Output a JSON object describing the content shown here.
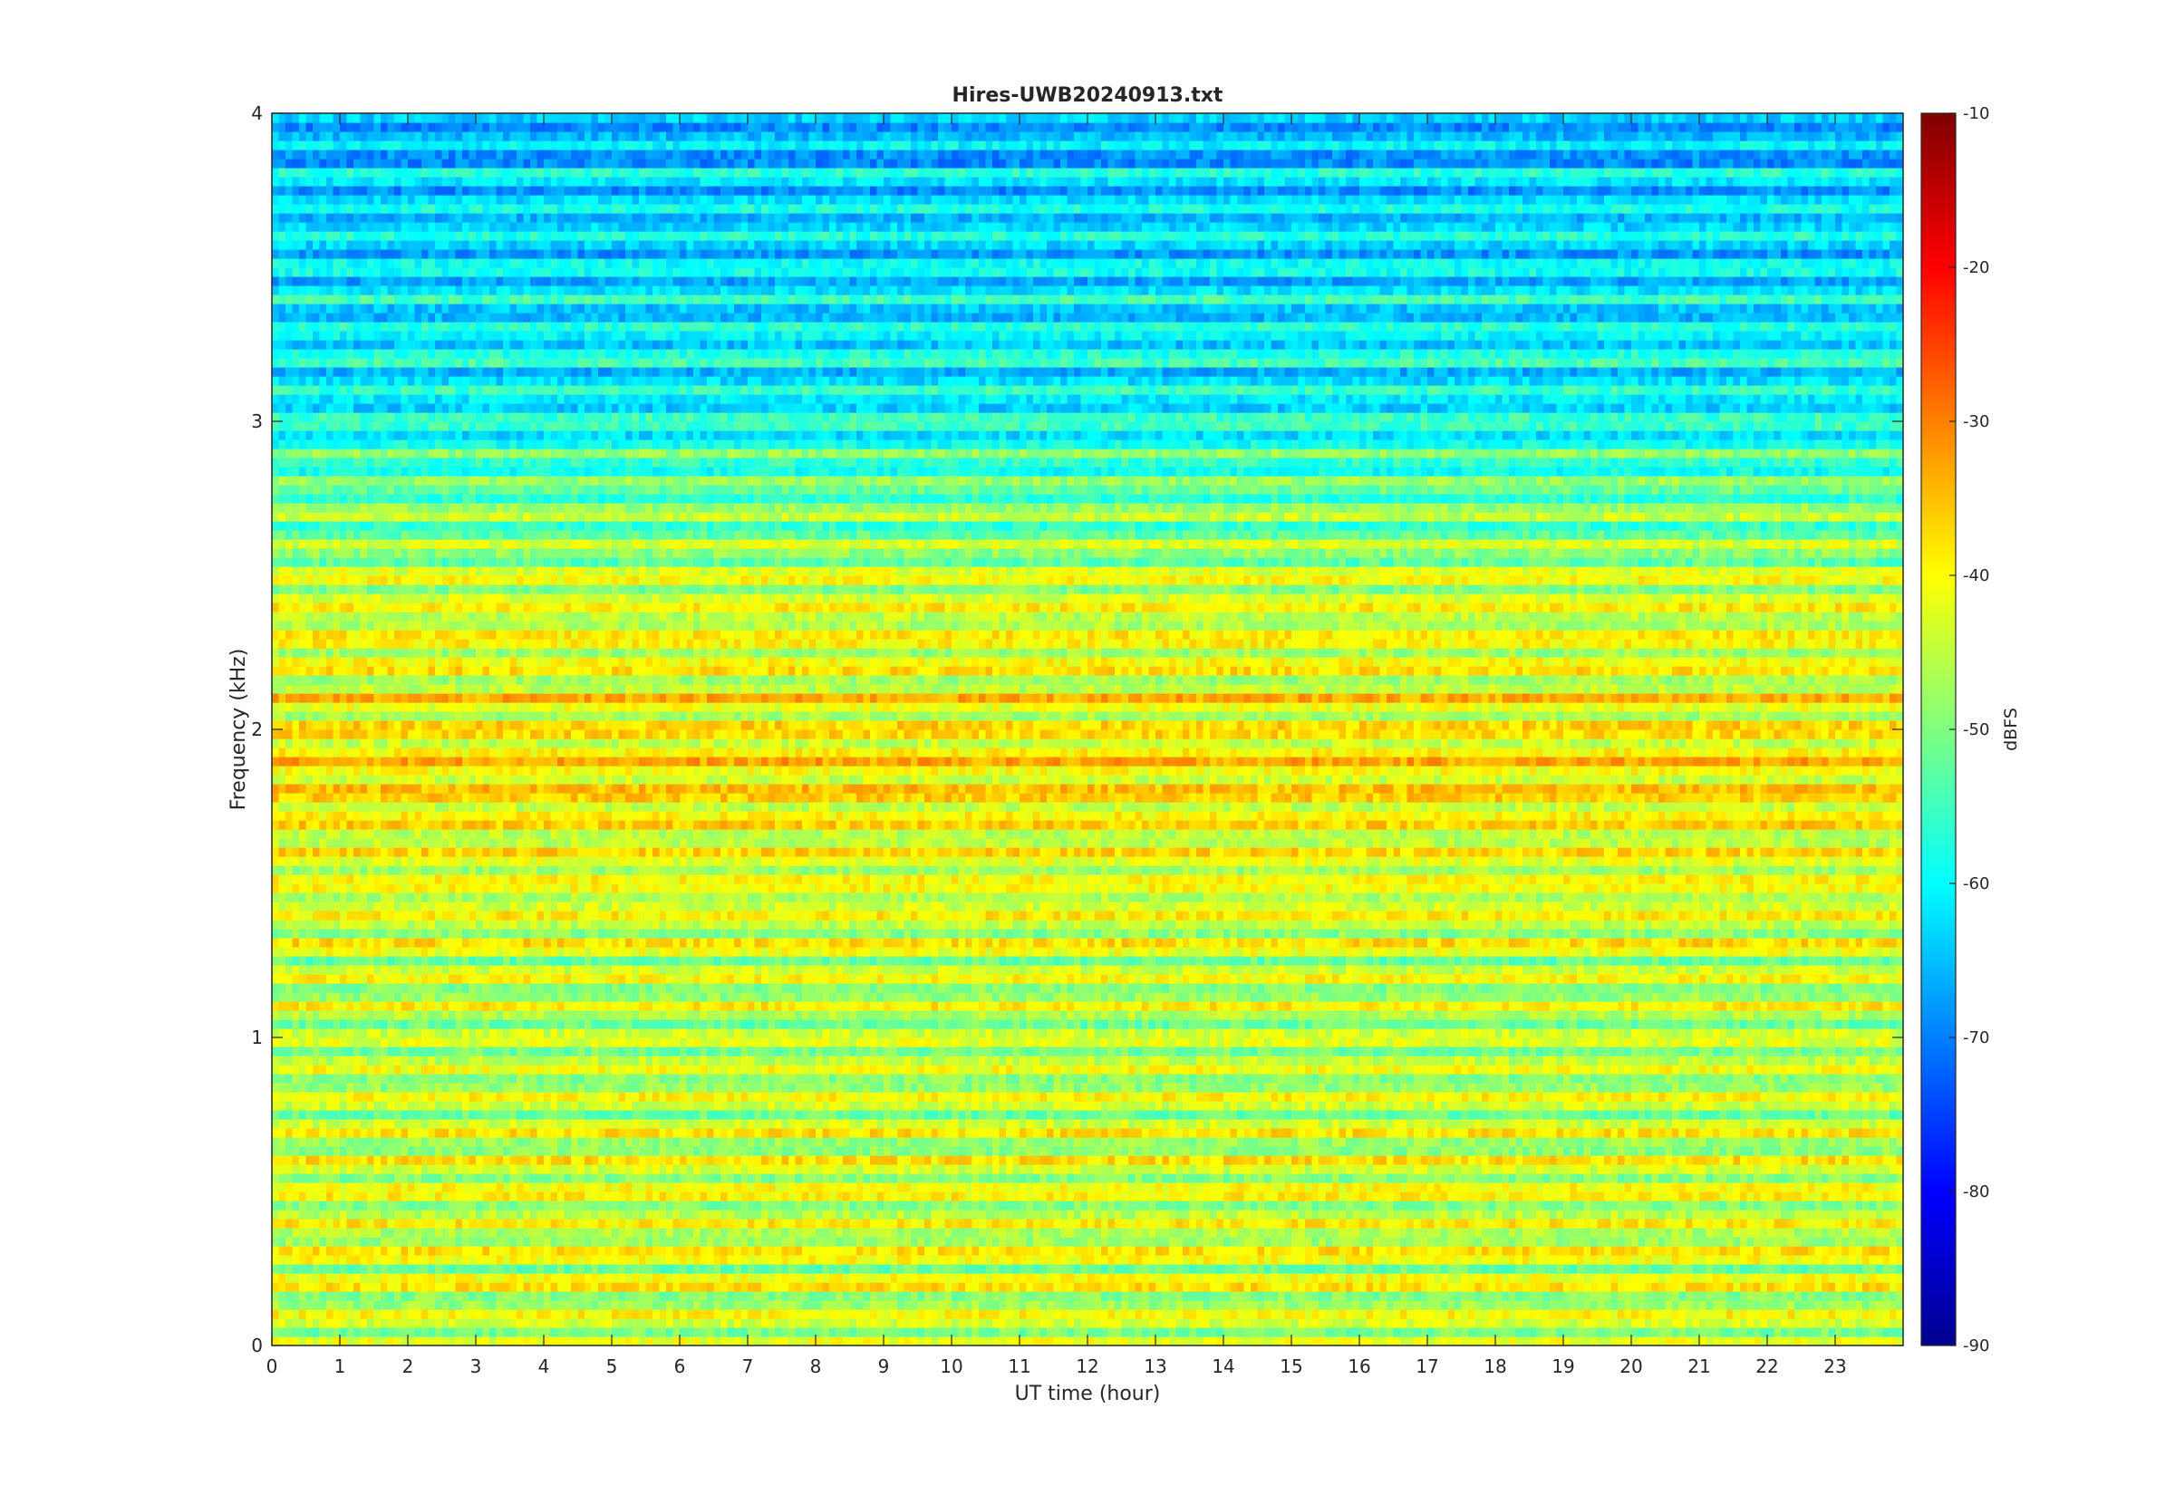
{
  "chart_data": {
    "type": "heatmap",
    "title": "Hires-UWB20240913.txt",
    "xlabel": "UT time (hour)",
    "ylabel": "Frequency (kHz)",
    "xlim": [
      0,
      24
    ],
    "ylim": [
      0,
      4
    ],
    "x_ticks": [
      "0",
      "1",
      "2",
      "3",
      "4",
      "5",
      "6",
      "7",
      "8",
      "9",
      "10",
      "11",
      "12",
      "13",
      "14",
      "15",
      "16",
      "17",
      "18",
      "19",
      "20",
      "21",
      "22",
      "23"
    ],
    "y_ticks": [
      "0",
      "1",
      "2",
      "3",
      "4"
    ],
    "colorbar": {
      "label": "dBFS",
      "range": [
        -90,
        -10
      ],
      "ticks": [
        "-10",
        "-20",
        "-30",
        "-40",
        "-50",
        "-60",
        "-70",
        "-80",
        "-90"
      ],
      "colormap": "jet"
    },
    "approx_band_levels_dBFS": [
      {
        "freq_khz": 0.05,
        "level": -40
      },
      {
        "freq_khz": 0.55,
        "level": -40
      },
      {
        "freq_khz": 1.05,
        "level": -42
      },
      {
        "freq_khz": 1.55,
        "level": -38
      },
      {
        "freq_khz": 1.85,
        "level": -35
      },
      {
        "freq_khz": 2.45,
        "level": -40
      },
      {
        "freq_khz": 3.0,
        "level": -55
      },
      {
        "freq_khz": 3.6,
        "level": -58
      },
      {
        "freq_khz": 4.0,
        "level": -62
      }
    ],
    "grid": false,
    "legend": "colorbar-right"
  }
}
